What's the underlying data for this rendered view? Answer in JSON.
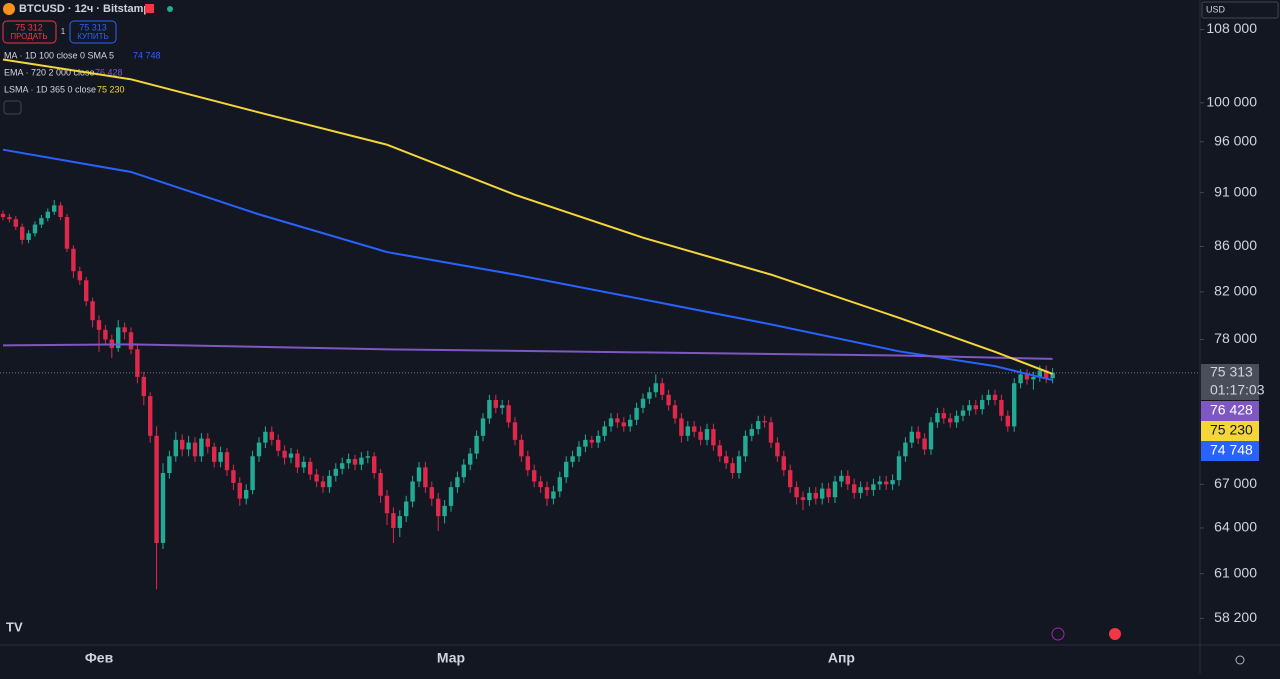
{
  "header": {
    "symbol": "BTCUSD · 12ч · Bitstamp",
    "sell_price": "75 312",
    "sell_label": "ПРОДАТЬ",
    "quantity": "1",
    "buy_price": "75 313",
    "buy_label": "КУПИТЬ",
    "currency": "USD"
  },
  "chart_data": {
    "type": "candlestick",
    "log_scale": true,
    "up_color": "#22ab94",
    "down_color": "#e0294a",
    "ylim": [
      56600,
      111400
    ],
    "yticks": [
      {
        "value": 58200,
        "label": "58 200"
      },
      {
        "value": 61000,
        "label": "61 000"
      },
      {
        "value": 64000,
        "label": "64 000"
      },
      {
        "value": 67000,
        "label": "67 000"
      },
      {
        "value": 78000,
        "label": "78 000"
      },
      {
        "value": 82000,
        "label": "82 000"
      },
      {
        "value": 86000,
        "label": "86 000"
      },
      {
        "value": 91000,
        "label": "91 000"
      },
      {
        "value": 96000,
        "label": "96 000"
      },
      {
        "value": 100000,
        "label": "100 000"
      },
      {
        "value": 108000,
        "label": "108 000"
      }
    ],
    "categories": [
      null,
      null,
      null,
      null,
      null,
      null,
      null,
      null,
      null,
      null,
      null,
      null,
      null,
      null,
      null,
      "Фев",
      null,
      null,
      null,
      null,
      null,
      null,
      null,
      null,
      null,
      null,
      null,
      null,
      null,
      null,
      null,
      null,
      null,
      null,
      null,
      null,
      null,
      null,
      null,
      null,
      null,
      null,
      null,
      null,
      null,
      null,
      null,
      null,
      null,
      null,
      null,
      null,
      null,
      null,
      null,
      null,
      null,
      null,
      null,
      null,
      null,
      null,
      null,
      null,
      null,
      null,
      null,
      null,
      null,
      null,
      "Мар",
      null,
      null,
      null,
      null,
      null,
      null,
      null,
      null,
      null,
      null,
      null,
      null,
      null,
      null,
      null,
      null,
      null,
      null,
      null,
      null,
      null,
      null,
      null,
      null,
      null,
      null,
      null,
      null,
      null,
      null,
      null,
      null,
      null,
      null,
      null,
      null,
      null,
      null,
      null,
      null,
      null,
      null,
      null,
      null,
      null,
      null,
      null,
      null,
      null,
      null,
      null,
      null,
      null,
      null,
      null,
      null,
      null,
      null,
      null,
      null,
      "Апр",
      null,
      null,
      null,
      null,
      null,
      null,
      null,
      null,
      null,
      null,
      null,
      null,
      null,
      null,
      null,
      null,
      null,
      null,
      null,
      null,
      null,
      null,
      null,
      null,
      null,
      null,
      null,
      null,
      null,
      null,
      null,
      null
    ],
    "ohlc": [
      [
        89000,
        89300,
        88400,
        88700
      ],
      [
        88700,
        89000,
        88200,
        88500
      ],
      [
        88500,
        88800,
        87500,
        87800
      ],
      [
        87800,
        88100,
        86200,
        86600
      ],
      [
        86600,
        87500,
        86300,
        87200
      ],
      [
        87200,
        88300,
        86900,
        88000
      ],
      [
        88000,
        88900,
        87700,
        88600
      ],
      [
        88600,
        89500,
        88300,
        89200
      ],
      [
        89200,
        90300,
        88900,
        89800
      ],
      [
        89800,
        90100,
        88400,
        88700
      ],
      [
        88700,
        89000,
        85500,
        85800
      ],
      [
        85800,
        86100,
        83200,
        83800
      ],
      [
        83800,
        84200,
        82600,
        83000
      ],
      [
        83000,
        83300,
        80800,
        81200
      ],
      [
        81200,
        81500,
        79000,
        79600
      ],
      [
        79600,
        80000,
        77000,
        78800
      ],
      [
        78800,
        79200,
        77600,
        78000
      ],
      [
        78000,
        78400,
        76500,
        77300
      ],
      [
        77300,
        79600,
        77000,
        79000
      ],
      [
        79000,
        79400,
        78000,
        78600
      ],
      [
        78600,
        79000,
        76800,
        77200
      ],
      [
        77200,
        77600,
        74500,
        75000
      ],
      [
        75000,
        75400,
        72800,
        73500
      ],
      [
        73500,
        73800,
        70000,
        70500
      ],
      [
        70500,
        71200,
        60000,
        63000
      ],
      [
        63000,
        68500,
        62600,
        67800
      ],
      [
        67800,
        69400,
        67400,
        69000
      ],
      [
        69000,
        70800,
        68600,
        70200
      ],
      [
        70200,
        70600,
        69000,
        69500
      ],
      [
        69500,
        70500,
        69000,
        70000
      ],
      [
        70000,
        70400,
        68600,
        69000
      ],
      [
        69000,
        70700,
        68600,
        70300
      ],
      [
        70300,
        70700,
        69200,
        69700
      ],
      [
        69700,
        70000,
        68200,
        68600
      ],
      [
        68600,
        69700,
        68200,
        69300
      ],
      [
        69300,
        69600,
        67600,
        68000
      ],
      [
        68000,
        68400,
        66600,
        67100
      ],
      [
        67100,
        67500,
        65500,
        66000
      ],
      [
        66000,
        67000,
        65600,
        66600
      ],
      [
        66600,
        69400,
        66300,
        69000
      ],
      [
        69000,
        70400,
        68600,
        70000
      ],
      [
        70000,
        71200,
        69600,
        70800
      ],
      [
        70800,
        71200,
        69800,
        70200
      ],
      [
        70200,
        70600,
        69000,
        69400
      ],
      [
        69400,
        69800,
        68400,
        68900
      ],
      [
        68900,
        69600,
        68500,
        69200
      ],
      [
        69200,
        69500,
        67800,
        68200
      ],
      [
        68200,
        69000,
        67800,
        68600
      ],
      [
        68600,
        68900,
        67300,
        67700
      ],
      [
        67700,
        68100,
        66800,
        67200
      ],
      [
        67200,
        67600,
        66400,
        66800
      ],
      [
        66800,
        68000,
        66400,
        67600
      ],
      [
        67600,
        68500,
        67200,
        68100
      ],
      [
        68100,
        68900,
        67700,
        68500
      ],
      [
        68500,
        69200,
        68100,
        68800
      ],
      [
        68800,
        69100,
        68000,
        68400
      ],
      [
        68400,
        69300,
        68000,
        68900
      ],
      [
        68900,
        69400,
        68500,
        69000
      ],
      [
        69000,
        69300,
        67400,
        67800
      ],
      [
        67800,
        68100,
        65700,
        66200
      ],
      [
        66200,
        66600,
        64200,
        65000
      ],
      [
        65000,
        65400,
        63000,
        64000
      ],
      [
        64000,
        65200,
        63400,
        64800
      ],
      [
        64800,
        66200,
        64400,
        65800
      ],
      [
        65800,
        67600,
        65400,
        67200
      ],
      [
        67200,
        68600,
        66800,
        68200
      ],
      [
        68200,
        68600,
        66400,
        66800
      ],
      [
        66800,
        67200,
        65500,
        66000
      ],
      [
        66000,
        66400,
        63800,
        64800
      ],
      [
        64800,
        65900,
        64300,
        65500
      ],
      [
        65500,
        67200,
        65100,
        66800
      ],
      [
        66800,
        67900,
        66400,
        67500
      ],
      [
        67500,
        68800,
        67100,
        68400
      ],
      [
        68400,
        69600,
        68000,
        69200
      ],
      [
        69200,
        70900,
        68800,
        70500
      ],
      [
        70500,
        72200,
        70100,
        71800
      ],
      [
        71800,
        73600,
        71400,
        73200
      ],
      [
        73200,
        73600,
        72200,
        72600
      ],
      [
        72600,
        73200,
        72100,
        72800
      ],
      [
        72800,
        73200,
        71100,
        71500
      ],
      [
        71500,
        71900,
        69800,
        70200
      ],
      [
        70200,
        70600,
        68600,
        69000
      ],
      [
        69000,
        69400,
        67600,
        68000
      ],
      [
        68000,
        68400,
        66800,
        67200
      ],
      [
        67200,
        67600,
        66400,
        66800
      ],
      [
        66800,
        67200,
        65500,
        66000
      ],
      [
        66000,
        66900,
        65600,
        66500
      ],
      [
        66500,
        67900,
        66100,
        67500
      ],
      [
        67500,
        69000,
        67100,
        68600
      ],
      [
        68600,
        69400,
        68200,
        69000
      ],
      [
        69000,
        70100,
        68600,
        69700
      ],
      [
        69700,
        70600,
        69300,
        70200
      ],
      [
        70200,
        70500,
        69600,
        70000
      ],
      [
        70000,
        70900,
        69600,
        70500
      ],
      [
        70500,
        71600,
        70100,
        71200
      ],
      [
        71200,
        72200,
        70800,
        71800
      ],
      [
        71800,
        72200,
        71100,
        71500
      ],
      [
        71500,
        71900,
        70800,
        71200
      ],
      [
        71200,
        72100,
        70800,
        71700
      ],
      [
        71700,
        73000,
        71300,
        72600
      ],
      [
        72600,
        73700,
        72200,
        73300
      ],
      [
        73300,
        74200,
        72900,
        73800
      ],
      [
        73800,
        75200,
        73400,
        74500
      ],
      [
        74500,
        74900,
        73200,
        73600
      ],
      [
        73600,
        74000,
        72400,
        72800
      ],
      [
        72800,
        73200,
        71400,
        71800
      ],
      [
        71800,
        72200,
        70000,
        70500
      ],
      [
        70500,
        71600,
        70100,
        71200
      ],
      [
        71200,
        71600,
        70400,
        70800
      ],
      [
        70800,
        71200,
        69800,
        70200
      ],
      [
        70200,
        71400,
        69800,
        71000
      ],
      [
        71000,
        71400,
        69400,
        69800
      ],
      [
        69800,
        70200,
        68600,
        69000
      ],
      [
        69000,
        69400,
        68100,
        68500
      ],
      [
        68500,
        68900,
        67400,
        67800
      ],
      [
        67800,
        69400,
        67400,
        69000
      ],
      [
        69000,
        70900,
        68600,
        70500
      ],
      [
        70500,
        71400,
        70100,
        71000
      ],
      [
        71000,
        72000,
        70600,
        71600
      ],
      [
        71600,
        72000,
        71100,
        71500
      ],
      [
        71500,
        71900,
        69600,
        70000
      ],
      [
        70000,
        70400,
        68600,
        69000
      ],
      [
        69000,
        69400,
        67600,
        68000
      ],
      [
        68000,
        68400,
        66400,
        66800
      ],
      [
        66800,
        67200,
        65600,
        66100
      ],
      [
        66100,
        66500,
        65200,
        65900
      ],
      [
        65900,
        66800,
        65500,
        66400
      ],
      [
        66400,
        66800,
        65600,
        66000
      ],
      [
        66000,
        67100,
        65600,
        66700
      ],
      [
        66700,
        67100,
        65700,
        66100
      ],
      [
        66100,
        67600,
        65700,
        67200
      ],
      [
        67200,
        68000,
        66800,
        67600
      ],
      [
        67600,
        68000,
        66600,
        67000
      ],
      [
        67000,
        67400,
        66000,
        66400
      ],
      [
        66400,
        67200,
        66000,
        66800
      ],
      [
        66800,
        67200,
        66200,
        66600
      ],
      [
        66600,
        67400,
        66200,
        67000
      ],
      [
        67000,
        67600,
        66600,
        67200
      ],
      [
        67200,
        67600,
        66600,
        67000
      ],
      [
        67000,
        67700,
        66600,
        67300
      ],
      [
        67300,
        69400,
        66900,
        69000
      ],
      [
        69000,
        70400,
        68600,
        70000
      ],
      [
        70000,
        71200,
        69600,
        70800
      ],
      [
        70800,
        71200,
        69900,
        70300
      ],
      [
        70300,
        70700,
        69100,
        69500
      ],
      [
        69500,
        71900,
        69100,
        71500
      ],
      [
        71500,
        72600,
        71100,
        72200
      ],
      [
        72200,
        72600,
        71400,
        71800
      ],
      [
        71800,
        72200,
        71100,
        71500
      ],
      [
        71500,
        72400,
        71100,
        72000
      ],
      [
        72000,
        72800,
        71600,
        72400
      ],
      [
        72400,
        73200,
        72000,
        72800
      ],
      [
        72800,
        73200,
        72100,
        72500
      ],
      [
        72500,
        73600,
        72100,
        73200
      ],
      [
        73200,
        74000,
        72800,
        73600
      ],
      [
        73600,
        74000,
        72800,
        73200
      ],
      [
        73200,
        73600,
        71600,
        72000
      ],
      [
        72000,
        72400,
        70800,
        71200
      ],
      [
        71200,
        74900,
        70800,
        74500
      ],
      [
        74500,
        75600,
        74100,
        75200
      ],
      [
        75200,
        75600,
        74400,
        74800
      ],
      [
        74800,
        75400,
        74000,
        75000
      ],
      [
        75000,
        75900,
        74600,
        75500
      ],
      [
        75500,
        75900,
        74500,
        74900
      ],
      [
        74900,
        75700,
        74500,
        75313
      ]
    ],
    "last_price": {
      "value": 75313,
      "label": "75 313"
    },
    "countdown": "01:17:03",
    "series": [
      {
        "name": "MA · 1D 100 close 0 SMA 5",
        "color": "#2962ff",
        "x": [
          0,
          20,
          40,
          60,
          80,
          100,
          120,
          140,
          155,
          164
        ],
        "values": [
          95200,
          93000,
          88950,
          85500,
          83500,
          81360,
          79250,
          77040,
          75850,
          74748
        ],
        "value_labels": [
          null,
          null,
          null,
          null,
          null,
          null,
          null,
          null,
          null,
          "74 748"
        ]
      },
      {
        "name": "EMA · 720 2 000 close",
        "color": "#7e57c2",
        "x": [
          0,
          20,
          60,
          100,
          140,
          164
        ],
        "values": [
          77520,
          77600,
          77200,
          76950,
          76700,
          76428
        ],
        "value_labels": [
          null,
          null,
          null,
          null,
          null,
          "76 428"
        ]
      },
      {
        "name": "LSMA · 1D 365 0 close",
        "color": "#f5d63a",
        "x": [
          0,
          20,
          40,
          60,
          80,
          100,
          120,
          140,
          155,
          164
        ],
        "values": [
          104650,
          102500,
          99000,
          95700,
          90800,
          86800,
          83500,
          79800,
          77000,
          75230
        ],
        "value_labels": [
          null,
          null,
          null,
          null,
          null,
          null,
          null,
          null,
          null,
          "75 230"
        ]
      }
    ]
  }
}
